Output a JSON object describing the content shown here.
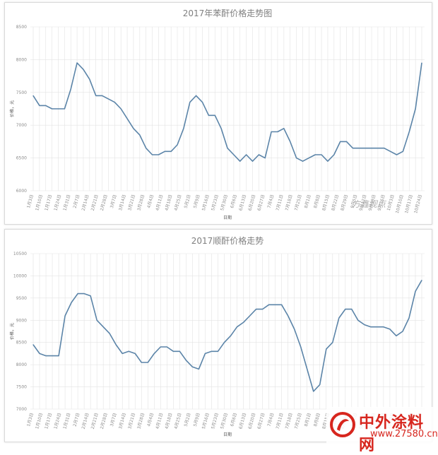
{
  "chart_data": [
    {
      "type": "line",
      "title": "2017年苯酐价格走势图",
      "xlabel": "日期",
      "ylabel": "价格，元",
      "ylim": [
        6000,
        8500
      ],
      "y_ticks": [
        6000,
        6500,
        7000,
        7500,
        8000,
        8500
      ],
      "x_tick_labels": [
        "1月3日",
        "1月10日",
        "1月17日",
        "1月24日",
        "1月31日",
        "2月7日",
        "2月14日",
        "2月21日",
        "2月28日",
        "3月7日",
        "3月14日",
        "3月21日",
        "3月28日",
        "4月4日",
        "4月11日",
        "4月18日",
        "4月25日",
        "5月2日",
        "5月9日",
        "5月16日",
        "5月23日",
        "5月30日",
        "6月6日",
        "6月13日",
        "6月20日",
        "6月27日",
        "7月4日",
        "7月11日",
        "7月18日",
        "7月25日",
        "8月1日",
        "8月8日",
        "8月15日",
        "8月22日",
        "8月29日",
        "9月5日",
        "9月12日",
        "9月19日",
        "9月26日",
        "10月3日",
        "10月10日",
        "10月17日",
        "10月24日"
      ],
      "grid": true,
      "series": [
        {
          "values": [
            7450,
            7300,
            7300,
            7250,
            7250,
            7250,
            7550,
            7950,
            7850,
            7700,
            7450,
            7450,
            7400,
            7350,
            7250,
            7100,
            6950,
            6850,
            6650,
            6550,
            6550,
            6600,
            6600,
            6700,
            6950,
            7350,
            7450,
            7350,
            7150,
            7150,
            6950,
            6650,
            6550,
            6450,
            6550,
            6450,
            6550,
            6500,
            6900,
            6900,
            6950,
            6750,
            6500,
            6450,
            6500,
            6550,
            6550,
            6450,
            6550,
            6750,
            6750,
            6650,
            6650,
            6650,
            6650,
            6650,
            6650,
            6600,
            6550,
            6600,
            6900,
            7250,
            7950
          ]
        }
      ]
    },
    {
      "type": "line",
      "title": "2017顺酐价格走势",
      "xlabel": "日期",
      "ylabel": "价格，元",
      "ylim": [
        7000,
        10500
      ],
      "y_ticks": [
        7000,
        7500,
        8000,
        8500,
        9000,
        9500,
        10000,
        10500
      ],
      "x_tick_labels": [
        "1月3日",
        "1月10日",
        "1月17日",
        "1月24日",
        "1月31日",
        "2月7日",
        "2月14日",
        "2月21日",
        "2月28日",
        "3月7日",
        "3月14日",
        "3月21日",
        "3月28日",
        "4月4日",
        "4月11日",
        "4月18日",
        "4月25日",
        "5月2日",
        "5月9日",
        "5月16日",
        "5月23日",
        "5月30日",
        "6月6日",
        "6月13日",
        "6月20日",
        "6月27日",
        "7月4日",
        "7月11日",
        "7月18日",
        "7月25日",
        "8月1日",
        "8月8日",
        "8月15日",
        "8月22日",
        "8月29日",
        "9月5日",
        "9月12日",
        "9月19日",
        "9月26日",
        "10月3日",
        "10月10日",
        "10月17日",
        "10月24日"
      ],
      "grid": true,
      "series": [
        {
          "values": [
            8450,
            8250,
            8200,
            8200,
            8200,
            9100,
            9400,
            9600,
            9600,
            9550,
            9000,
            8850,
            8700,
            8450,
            8250,
            8300,
            8250,
            8050,
            8050,
            8250,
            8400,
            8400,
            8300,
            8300,
            8100,
            7950,
            7900,
            8250,
            8300,
            8300,
            8500,
            8650,
            8850,
            8950,
            9100,
            9250,
            9250,
            9350,
            9350,
            9350,
            9100,
            8800,
            8400,
            7900,
            7400,
            7550,
            8350,
            8500,
            9050,
            9250,
            9250,
            9000,
            8900,
            8850,
            8850,
            8850,
            8800,
            8650,
            8750,
            9050,
            9650,
            9900
          ]
        }
      ]
    }
  ],
  "watermark": {
    "text": "方鑫视点"
  },
  "brand": {
    "name": "中外涂料网",
    "url": "www.27580.cn",
    "color": "#d7261e"
  },
  "colors": {
    "series": "#5b84a8",
    "grid": "#e3e3e3"
  }
}
